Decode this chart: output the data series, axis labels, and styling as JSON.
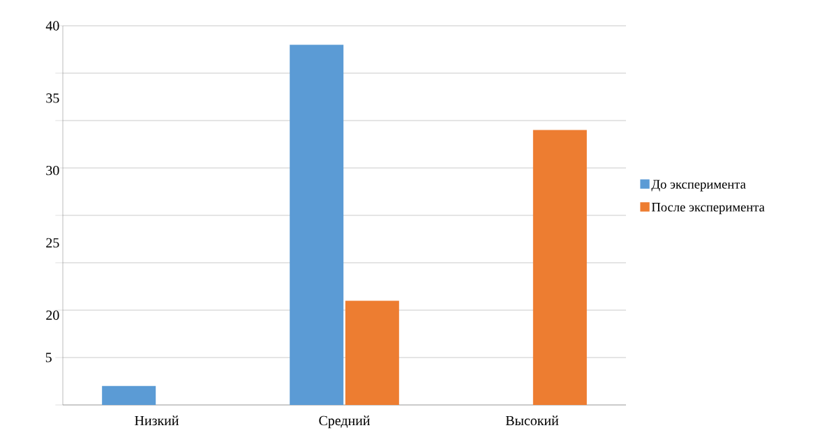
{
  "chart_data": {
    "type": "bar",
    "categories": [
      "Низкий",
      "Средний",
      "Высокий"
    ],
    "series": [
      {
        "name": "До эксперимента",
        "color": "#5b9bd5",
        "values": [
          2,
          38,
          0
        ]
      },
      {
        "name": "После эксперимента",
        "color": "#ed7d31",
        "values": [
          0,
          11,
          29
        ]
      }
    ],
    "ylim": [
      0,
      40
    ],
    "yticks": [
      {
        "value": 0,
        "label": null
      },
      5,
      {
        "value": 10,
        "label": null
      },
      {
        "value": 15,
        "label": null
      },
      {
        "value": 20,
        "label": null
      },
      {
        "value": 25,
        "label": null
      },
      {
        "value": 30,
        "label": null
      },
      {
        "value": 35,
        "label": null
      },
      {
        "value": 40,
        "label": null
      }
    ],
    "y2lim": [
      13.8,
      40
    ],
    "y2ticks": [
      20,
      25,
      30,
      35,
      40
    ],
    "grid": "y",
    "legend": "right"
  }
}
